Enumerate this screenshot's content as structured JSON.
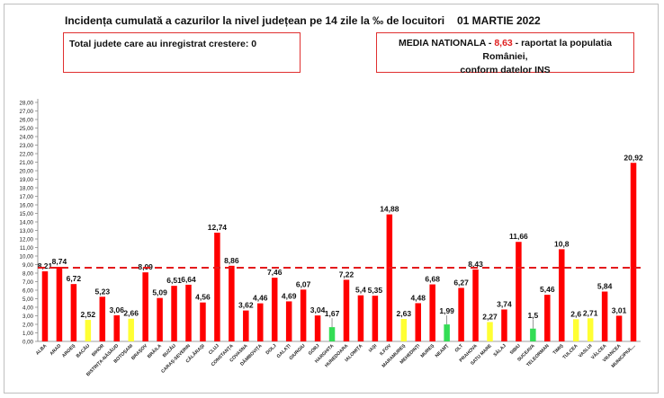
{
  "header": {
    "title": "Incidența cumulată a cazurilor la nivel județean pe 14 zile la ‰ de locuitori",
    "date": "01 MARTIE 2022"
  },
  "info_left": {
    "text": "Total judete care au inregistrat crestere: 0"
  },
  "info_right": {
    "prefix": "MEDIA NATIONALA - ",
    "value": "8,63",
    "suffix": " -  raportat la populatia României,",
    "line2": "conform datelor INS"
  },
  "colors": {
    "red": "#ff0000",
    "yellow": "#ffff33",
    "green": "#33dd55",
    "average_line": "#e31a1c"
  },
  "chart_data": {
    "type": "bar",
    "ylim": [
      0,
      28
    ],
    "ytick_step": 1,
    "ytick_format": "decimal-comma-2",
    "average": 8.63,
    "categories": [
      "ALBA",
      "ARAD",
      "ARGEȘ",
      "BACĂU",
      "BIHOR",
      "BISTRIȚA-NĂSĂUD",
      "BOTOȘANI",
      "BRAȘOV",
      "BRĂILA",
      "BUZĂU",
      "CARAȘ-SEVERIN",
      "CĂLĂRAȘI",
      "CLUJ",
      "CONSTANȚA",
      "COVASNA",
      "DÂMBOVIȚA",
      "DOLJ",
      "GALAȚI",
      "GIURGIU",
      "GORJ",
      "HARGHITA",
      "HUNEDOARA",
      "IALOMIȚA",
      "IAȘI",
      "ILFOV",
      "MARAMUREȘ",
      "MEHEDINȚI",
      "MUREȘ",
      "NEAMȚ",
      "OLT",
      "PRAHOVA",
      "SATU MARE",
      "SĂLAJ",
      "SIBIU",
      "SUCEAVA",
      "TELEORMAN",
      "TIMIȘ",
      "TULCEA",
      "VASLUI",
      "VÂLCEA",
      "VRANCEA",
      "MUNICIPIUL..."
    ],
    "values": [
      8.21,
      8.74,
      6.72,
      2.52,
      5.23,
      3.06,
      2.66,
      8.09,
      5.09,
      6.51,
      6.64,
      4.56,
      12.74,
      8.86,
      3.62,
      4.46,
      7.46,
      4.69,
      6.07,
      3.04,
      1.67,
      7.22,
      5.4,
      5.35,
      14.88,
      2.63,
      4.48,
      6.68,
      1.99,
      6.27,
      8.43,
      2.27,
      3.74,
      11.66,
      1.5,
      5.46,
      10.8,
      2.6,
      2.71,
      5.84,
      3.01,
      20.92
    ],
    "labels": [
      "8,21",
      "8,74",
      "6,72",
      "2,52",
      "5,23",
      "3,06",
      "2,66",
      "8,09",
      "5,09",
      "6,51",
      "6,64",
      "4,56",
      "12,74",
      "8,86",
      "3,62",
      "4,46",
      "7,46",
      "4,69",
      "6,07",
      "3,04",
      "1,67",
      "7,22",
      "5,4",
      "5,35",
      "14,88",
      "2,63",
      "4,48",
      "6,68",
      "1,99",
      "6,27",
      "8,43",
      "2,27",
      "3,74",
      "11,66",
      "1,5",
      "5,46",
      "10,8",
      "2,6",
      "2,71",
      "5,84",
      "3,01",
      "20,92"
    ],
    "bar_colors": [
      "red",
      "red",
      "red",
      "yellow",
      "red",
      "red",
      "yellow",
      "red",
      "red",
      "red",
      "red",
      "red",
      "red",
      "red",
      "red",
      "red",
      "red",
      "red",
      "red",
      "red",
      "green",
      "red",
      "red",
      "red",
      "red",
      "yellow",
      "red",
      "red",
      "green",
      "red",
      "red",
      "yellow",
      "red",
      "red",
      "green",
      "red",
      "red",
      "yellow",
      "yellow",
      "red",
      "red",
      "red"
    ]
  }
}
